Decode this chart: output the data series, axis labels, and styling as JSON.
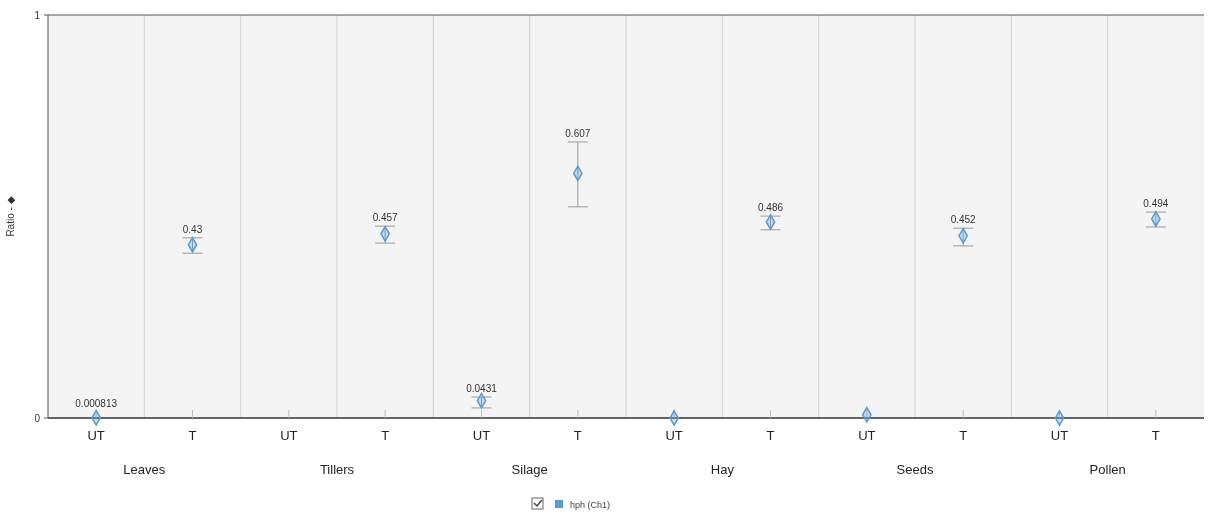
{
  "chart_data": {
    "type": "scatter",
    "ylabel": "Ratio - ◆",
    "categories": [
      "UT",
      "T",
      "UT",
      "T",
      "UT",
      "T",
      "UT",
      "T",
      "UT",
      "T",
      "UT",
      "T"
    ],
    "annotations": [
      "Leaves",
      "Tillers",
      "Silage",
      "Hay",
      "Seeds",
      "Pollen"
    ],
    "series": [
      {
        "name": "hph (Ch1)",
        "color": "#5b9bd5",
        "values": [
          0.000813,
          0.43,
          null,
          0.457,
          0.0431,
          0.607,
          0,
          0.486,
          0.008,
          0.452,
          0,
          0.494
        ],
        "errors": [
          null,
          [
            0.409,
            0.447
          ],
          null,
          [
            0.434,
            0.476
          ],
          [
            0.025,
            0.052
          ],
          [
            0.524,
            0.685
          ],
          null,
          [
            0.467,
            0.501
          ],
          null,
          [
            0.427,
            0.471
          ],
          null,
          [
            0.474,
            0.511
          ]
        ],
        "value_labels": [
          "0.000813",
          "0.43",
          null,
          "0.457",
          "0.0431",
          "0.607",
          null,
          "0.486",
          null,
          "0.452",
          null,
          "0.494"
        ]
      }
    ],
    "ylim": [
      0,
      1
    ],
    "yticks": [
      0,
      1
    ],
    "grid": "x",
    "legend": "bottom",
    "marker": "diamond"
  }
}
